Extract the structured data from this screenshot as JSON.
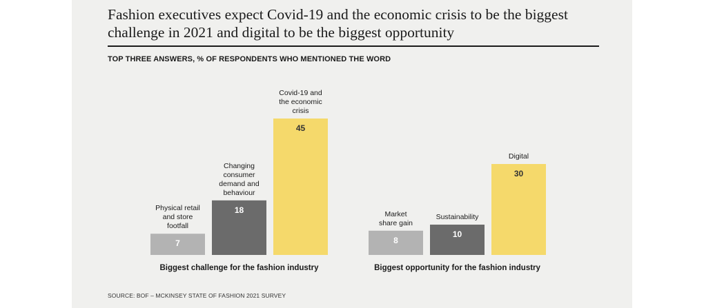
{
  "title": "Fashion executives expect Covid-19 and the economic crisis to be the biggest challenge in 2021 and digital to be the biggest opportunity",
  "subtitle": "TOP THREE ANSWERS, % OF RESPONDENTS WHO MENTIONED THE WORD",
  "source": "SOURCE: BOF – MCKINSEY STATE OF FASHION 2021 SURVEY",
  "colors": {
    "light_gray": "#b3b3b3",
    "dark_gray": "#6b6b6b",
    "yellow": "#f5d96b",
    "background": "#f0f0ee"
  },
  "chart_data": [
    {
      "type": "bar",
      "title": "Biggest challenge for the fashion industry",
      "categories": [
        [
          "Physical retail",
          "and store",
          "footfall"
        ],
        [
          "Changing",
          "consumer",
          "demand and",
          "behaviour"
        ],
        [
          "Covid-19 and",
          "the economic",
          "crisis"
        ]
      ],
      "values": [
        7,
        18,
        45
      ],
      "colors": [
        "light_gray",
        "dark_gray",
        "yellow"
      ],
      "ylim": [
        0,
        45
      ]
    },
    {
      "type": "bar",
      "title": "Biggest opportunity for the fashion industry",
      "categories": [
        [
          "Market",
          "share gain"
        ],
        [
          "Sustainability"
        ],
        [
          "Digital"
        ]
      ],
      "values": [
        8,
        10,
        30
      ],
      "colors": [
        "light_gray",
        "dark_gray",
        "yellow"
      ],
      "ylim": [
        0,
        45
      ]
    }
  ]
}
